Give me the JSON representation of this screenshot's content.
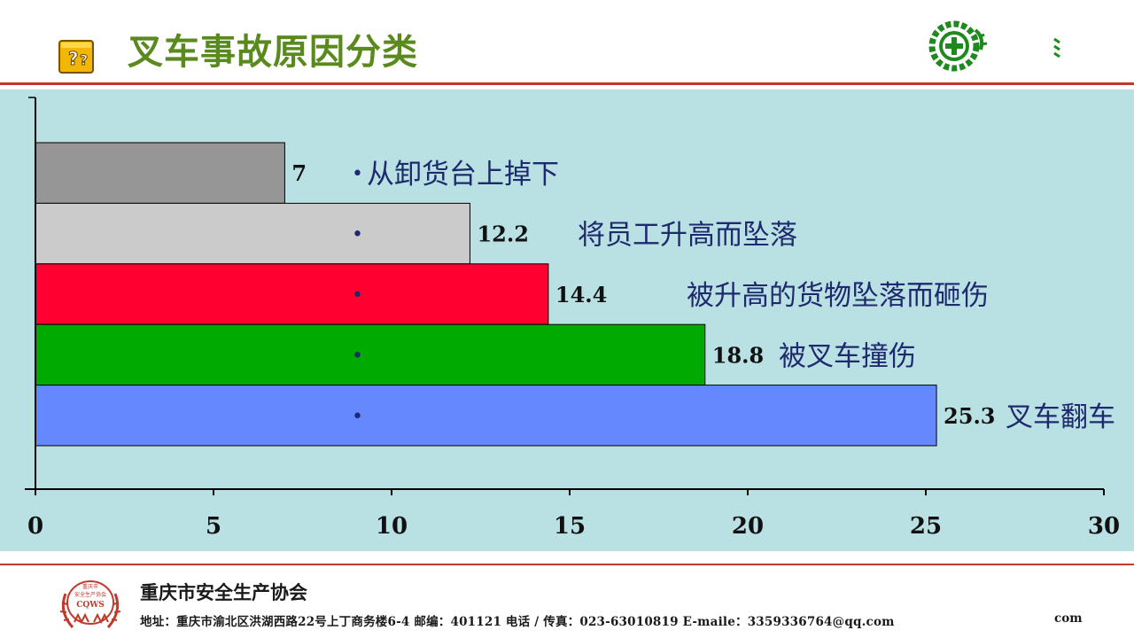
{
  "header": {
    "title": "叉车事故原因分类",
    "icon": "question-block-icon",
    "logo": "safety-cross-gear-logo",
    "colors": {
      "title": "#5a8a1e",
      "rule": "#c0392b",
      "chart_bg": "#b9e0e3"
    }
  },
  "chart_data": {
    "type": "bar",
    "orientation": "horizontal",
    "categories": [
      "从卸货台上掉下",
      "将员工升高而坠落",
      "被升高的货物坠落而砸伤",
      "被叉车撞伤",
      "叉车翻车"
    ],
    "values": [
      7,
      12.2,
      14.4,
      18.8,
      25.3
    ],
    "value_labels": [
      "7",
      "12.2",
      "14.4",
      "18.8",
      "25.3"
    ],
    "colors": [
      "#969696",
      "#cbcbcb",
      "#ff0030",
      "#00aa00",
      "#6688ff"
    ],
    "bullet": "•",
    "xlim": [
      0,
      30
    ],
    "xticks": [
      0,
      5,
      10,
      15,
      20,
      25,
      30
    ],
    "xtick_labels": [
      "0",
      "5",
      "10",
      "15",
      "20",
      "25",
      "30"
    ],
    "grid": false,
    "title": "",
    "xlabel": "",
    "ylabel": ""
  },
  "footer": {
    "org_name": "重庆市安全生产协会",
    "address": "地址：重庆市渝北区洪湖西路22号上丁商务楼6-4  邮编：401121   电话 / 传真：023-63010819    E-maile：3359336764@qq.com",
    "partial_text": "com",
    "logo": "cqws-association-logo",
    "logo_text": [
      "重庆市",
      "安全生产协会",
      "CQWS"
    ]
  }
}
